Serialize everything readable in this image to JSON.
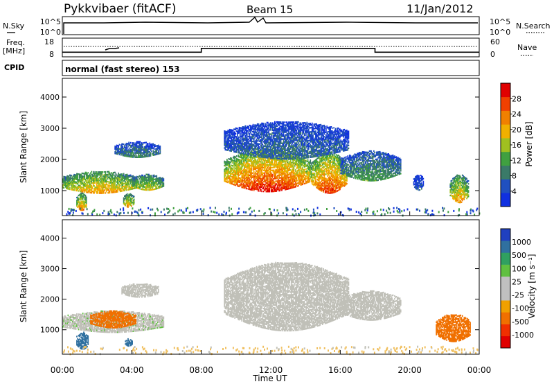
{
  "header": {
    "title": "Pykkvibaer (fitACF)",
    "beam": "Beam 15",
    "date": "11/Jan/2012"
  },
  "nsky_panel": {
    "left_label": "N.Sky",
    "left_ticks": [
      "10^5",
      "10^0"
    ],
    "right_ticks": [
      "10^5",
      "10^0"
    ],
    "right_label": "N.Search"
  },
  "freq_panel": {
    "left_label_1": "Freq.",
    "left_label_2": "[MHz]",
    "left_ticks": [
      "18",
      "8"
    ],
    "right_ticks": [
      "60",
      "0"
    ],
    "right_label": "Nave",
    "freq_steps": [
      {
        "t_start": 0,
        "t_end": 8,
        "mhz": 10.5
      },
      {
        "t_start": 8,
        "t_end": 18,
        "mhz": 12.5
      },
      {
        "t_start": 18,
        "t_end": 24,
        "mhz": 10.5
      }
    ]
  },
  "cpid_panel": {
    "label": "CPID",
    "mode_text": "normal (fast stereo) 153"
  },
  "colors": {
    "power_scale": [
      "#1030e0",
      "#2050c0",
      "#3a7a68",
      "#40a040",
      "#a0c020",
      "#f0b000",
      "#f08000",
      "#f04000",
      "#e00000"
    ],
    "velocity_scale": [
      "#2040c0",
      "#3070a0",
      "#30a060",
      "#60c040",
      "#c0c0c0",
      "#c0c0c0",
      "#f0a000",
      "#f07000",
      "#f03000",
      "#e00000"
    ],
    "ground_scatter": "#c0c0b8"
  },
  "chart_data": [
    {
      "type": "heatmap",
      "name": "power",
      "ylabel": "Slant Range [km]",
      "yticks": [
        1000,
        2000,
        3000,
        4000
      ],
      "ylim": [
        200,
        4600
      ],
      "xlim": [
        0,
        24
      ],
      "colorbar": {
        "label": "Power [dB]",
        "ticks": [
          "4",
          "8",
          "12",
          "16",
          "20",
          "24",
          "28"
        ],
        "range": [
          0,
          32
        ]
      },
      "echo_regions": [
        {
          "t0": 0.0,
          "t1": 4.3,
          "r_low": 900,
          "r_high": 1600,
          "peak_db": 22
        },
        {
          "t0": 4.0,
          "t1": 5.8,
          "r_low": 1000,
          "r_high": 1500,
          "peak_db": 18
        },
        {
          "t0": 0.8,
          "t1": 1.4,
          "r_low": 350,
          "r_high": 900,
          "peak_db": 24
        },
        {
          "t0": 3.5,
          "t1": 4.1,
          "r_low": 450,
          "r_high": 900,
          "peak_db": 22
        },
        {
          "t0": 3.0,
          "t1": 5.6,
          "r_low": 2050,
          "r_high": 2550,
          "peak_db": 10
        },
        {
          "t0": 9.3,
          "t1": 14.3,
          "r_low": 950,
          "r_high": 2300,
          "peak_db": 30
        },
        {
          "t0": 14.3,
          "t1": 16.4,
          "r_low": 900,
          "r_high": 2200,
          "peak_db": 28
        },
        {
          "t0": 9.3,
          "t1": 16.5,
          "r_low": 2000,
          "r_high": 3200,
          "peak_db": 8
        },
        {
          "t0": 16.0,
          "t1": 19.5,
          "r_low": 1300,
          "r_high": 2250,
          "peak_db": 12
        },
        {
          "t0": 20.2,
          "t1": 20.8,
          "r_low": 1000,
          "r_high": 1500,
          "peak_db": 6
        },
        {
          "t0": 22.3,
          "t1": 23.4,
          "r_low": 600,
          "r_high": 1500,
          "peak_db": 22
        }
      ]
    },
    {
      "type": "heatmap",
      "name": "velocity",
      "ylabel": "Slant Range [km]",
      "xlabel": "Time UT",
      "yticks": [
        1000,
        2000,
        3000,
        4000
      ],
      "ylim": [
        200,
        4600
      ],
      "xlim": [
        0,
        24
      ],
      "xticks": [
        "00:00",
        "04:00",
        "08:00",
        "12:00",
        "16:00",
        "20:00",
        "00:00"
      ],
      "colorbar": {
        "label": "Velocity [m s⁻¹]",
        "ticks": [
          "1000",
          "500",
          "100",
          "25",
          "-25",
          "-100",
          "-500",
          "-1000"
        ]
      },
      "echo_regions": [
        {
          "t0": 0.0,
          "t1": 5.8,
          "r_low": 900,
          "r_high": 1600,
          "vel": 10
        },
        {
          "t0": 1.6,
          "t1": 4.2,
          "r_low": 1050,
          "r_high": 1600,
          "vel": -300
        },
        {
          "t0": 0.8,
          "t1": 1.5,
          "r_low": 350,
          "r_high": 900,
          "vel": 200
        },
        {
          "t0": 3.6,
          "t1": 4.0,
          "r_low": 450,
          "r_high": 700,
          "vel": 150
        },
        {
          "t0": 3.4,
          "t1": 5.5,
          "r_low": 2050,
          "r_high": 2500,
          "vel": 5
        },
        {
          "t0": 9.3,
          "t1": 16.5,
          "r_low": 950,
          "r_high": 3200,
          "vel": 0
        },
        {
          "t0": 16.0,
          "t1": 19.5,
          "r_low": 1300,
          "r_high": 2250,
          "vel": 0
        },
        {
          "t0": 21.5,
          "t1": 23.5,
          "r_low": 600,
          "r_high": 1500,
          "vel": -150
        }
      ]
    }
  ]
}
